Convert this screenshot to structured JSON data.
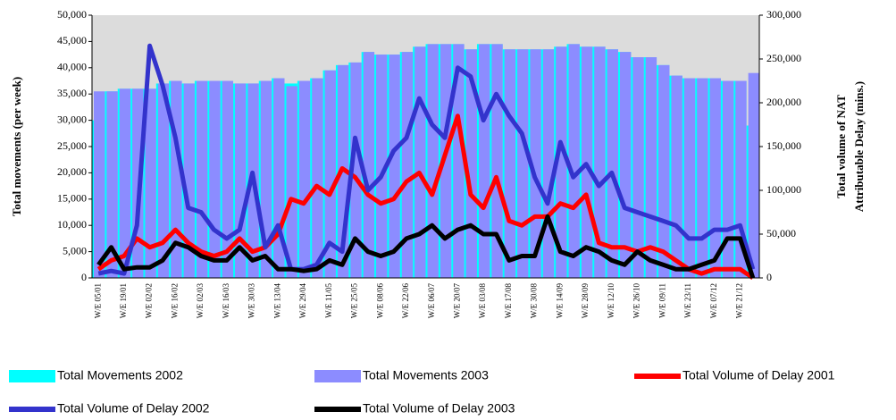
{
  "chart_data": {
    "type": "bar-line",
    "ylabel": "Total movements (per week)",
    "y2label": [
      "Total volume of NAT",
      "Attributable Delay (mins.)"
    ],
    "categories": [
      "W/E 05/01",
      null,
      "W/E 19/01",
      null,
      "W/E 02/02",
      null,
      "W/E 16/02",
      null,
      "W/E 02/03",
      null,
      "W/E 16/03",
      null,
      "W/E 30/03",
      null,
      "W/E 13/04",
      null,
      "W/E 29/04",
      null,
      "W/E 11/05",
      null,
      "W/E 25/05",
      null,
      "W/E 08/06",
      null,
      "W/E 22/06",
      null,
      "W/E 06/07",
      null,
      "W/E 20/07",
      null,
      "W/E 03/08",
      null,
      "W/E 17/08",
      null,
      "W/E 30/08",
      null,
      "W/E 14/09",
      null,
      "W/E 28/09",
      null,
      "W/E 12/10",
      null,
      "W/E 26/10",
      null,
      "W/E 09/11",
      null,
      "W/E 23/11",
      null,
      "W/E 07/12",
      null,
      "W/E 21/12",
      null
    ],
    "ylim": [
      0,
      50000
    ],
    "yticks": [
      0,
      {
        "value": 5000,
        "label": "5,000"
      },
      {
        "value": 10000,
        "label": "10,000"
      },
      {
        "value": 15000,
        "label": "15,000"
      },
      {
        "value": 20000,
        "label": "20,000"
      },
      {
        "value": 25000,
        "label": "25,000"
      },
      {
        "value": 30000,
        "label": "30,000"
      },
      {
        "value": 35000,
        "label": "35,000"
      },
      {
        "value": 40000,
        "label": "40,000"
      },
      {
        "value": 45000,
        "label": "45,000"
      },
      {
        "value": 50000,
        "label": "50,000"
      }
    ],
    "y2lim": [
      0,
      300000
    ],
    "y2ticks": [
      0,
      {
        "value": 50000,
        "label": "50,000"
      },
      {
        "value": 100000,
        "label": "100,000"
      },
      {
        "value": 150000,
        "label": "150,000"
      },
      {
        "value": 200000,
        "label": "200,000"
      },
      {
        "value": 250000,
        "label": "250,000"
      },
      {
        "value": 300000,
        "label": "300,000"
      }
    ],
    "series": [
      {
        "name": "Total Movements 2002",
        "color": "#00ffff",
        "kind": "bar",
        "values": [
          30000,
          35500,
          36000,
          36000,
          36000,
          37000,
          37500,
          37000,
          37500,
          37500,
          37500,
          37000,
          37000,
          37500,
          38000,
          37000,
          37500,
          38000,
          39500,
          40500,
          41000,
          43000,
          42500,
          42500,
          43000,
          44000,
          44500,
          44500,
          44500,
          43500,
          44500,
          44500,
          43500,
          43500,
          43500,
          43500,
          44000,
          44500,
          44000,
          44000,
          43500,
          43000,
          42000,
          42000,
          40500,
          38500,
          38000,
          38000,
          38000,
          37500,
          37500,
          29000
        ]
      },
      {
        "name": "Total Movements 2003",
        "color": "#8c8cff",
        "kind": "bar",
        "values": [
          35500,
          35500,
          36000,
          36000,
          36000,
          37000,
          37500,
          37000,
          37500,
          37500,
          37500,
          37000,
          37000,
          37500,
          38000,
          36500,
          37500,
          38000,
          39500,
          40500,
          41000,
          43000,
          42500,
          42500,
          43000,
          44000,
          44500,
          44500,
          44500,
          43500,
          44500,
          44500,
          43500,
          43500,
          43500,
          43500,
          44000,
          44500,
          44000,
          44000,
          43500,
          43000,
          42000,
          42000,
          40500,
          38500,
          38000,
          38000,
          38000,
          37500,
          37500,
          39000
        ]
      },
      {
        "name": "Total Volume of Delay 2001",
        "color": "#ff0000",
        "kind": "line",
        "axis": "y2",
        "values": [
          10000,
          20000,
          25000,
          45000,
          35000,
          40000,
          55000,
          40000,
          30000,
          25000,
          30000,
          45000,
          30000,
          35000,
          50000,
          90000,
          85000,
          105000,
          95000,
          125000,
          115000,
          95000,
          85000,
          90000,
          110000,
          120000,
          95000,
          140000,
          185000,
          95000,
          80000,
          115000,
          65000,
          60000,
          70000,
          70000,
          85000,
          80000,
          95000,
          40000,
          35000,
          35000,
          30000,
          35000,
          30000,
          20000,
          10000,
          5000,
          10000,
          10000,
          10000,
          0
        ]
      },
      {
        "name": "Total Volume of Delay 2002",
        "color": "#3333cc",
        "kind": "line",
        "axis": "y2",
        "values": [
          5000,
          8000,
          5000,
          60000,
          265000,
          220000,
          160000,
          80000,
          75000,
          55000,
          45000,
          55000,
          120000,
          35000,
          60000,
          10000,
          10000,
          15000,
          40000,
          30000,
          160000,
          100000,
          115000,
          145000,
          160000,
          205000,
          175000,
          160000,
          240000,
          230000,
          180000,
          210000,
          185000,
          165000,
          115000,
          85000,
          155000,
          115000,
          130000,
          105000,
          120000,
          80000,
          75000,
          70000,
          65000,
          60000,
          45000,
          45000,
          55000,
          55000,
          60000,
          10000
        ]
      },
      {
        "name": "Total Volume of Delay 2003",
        "color": "#000000",
        "kind": "line",
        "axis": "y2",
        "values": [
          15000,
          35000,
          10000,
          12000,
          12000,
          20000,
          40000,
          35000,
          25000,
          20000,
          20000,
          35000,
          20000,
          25000,
          10000,
          10000,
          8000,
          10000,
          20000,
          15000,
          45000,
          30000,
          25000,
          30000,
          45000,
          50000,
          60000,
          45000,
          55000,
          60000,
          50000,
          50000,
          20000,
          25000,
          25000,
          70000,
          30000,
          25000,
          35000,
          30000,
          20000,
          15000,
          30000,
          20000,
          15000,
          10000,
          10000,
          15000,
          20000,
          45000,
          45000,
          0
        ]
      }
    ]
  }
}
